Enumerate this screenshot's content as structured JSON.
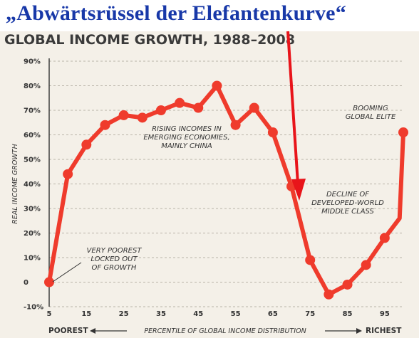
{
  "banner": {
    "text": "„Abwärtsrüssel der Elefantenkurve“"
  },
  "chart_data": {
    "type": "line",
    "title": "GLOBAL INCOME GROWTH, 1988–2008",
    "ylabel": "REAL INCOME GROWTH",
    "xlabel": "PERCENTILE OF GLOBAL INCOME DISTRIBUTION",
    "xlabel_left": "POOREST",
    "xlabel_right": "RICHEST",
    "x_ticks": [
      5,
      15,
      25,
      35,
      45,
      55,
      65,
      75,
      85,
      95
    ],
    "y_ticks": [
      "90%",
      "80%",
      "70%",
      "60%",
      "50%",
      "40%",
      "30%",
      "20%",
      "10%",
      "0",
      "-10%"
    ],
    "y_tick_values": [
      90,
      80,
      70,
      60,
      50,
      40,
      30,
      20,
      10,
      0,
      -10
    ],
    "xlim": [
      5,
      100
    ],
    "ylim": [
      -10,
      90
    ],
    "grid": "horizontal dashed",
    "x": [
      5,
      10,
      15,
      20,
      25,
      30,
      35,
      40,
      45,
      50,
      55,
      60,
      65,
      70,
      75,
      80,
      85,
      90,
      95,
      99,
      100
    ],
    "values": [
      0,
      44,
      56,
      64,
      68,
      67,
      70,
      73,
      71,
      80,
      64,
      71,
      61,
      39,
      9,
      -5,
      -1,
      7,
      18,
      26,
      61
    ],
    "line_color": "#ef3b2c",
    "annotations": [
      [
        "VERY POOREST",
        "LOCKED OUT",
        "OF GROWTH"
      ],
      [
        "RISING INCOMES IN",
        "EMERGING ECONOMIES,",
        "MAINLY CHINA"
      ],
      [
        "DECLINE OF",
        "DEVELOPED-WORLD",
        "MIDDLE CLASS"
      ],
      [
        "BOOMING",
        "GLOBAL ELITE"
      ]
    ],
    "highlight_arrow_color": "#e8141a"
  }
}
